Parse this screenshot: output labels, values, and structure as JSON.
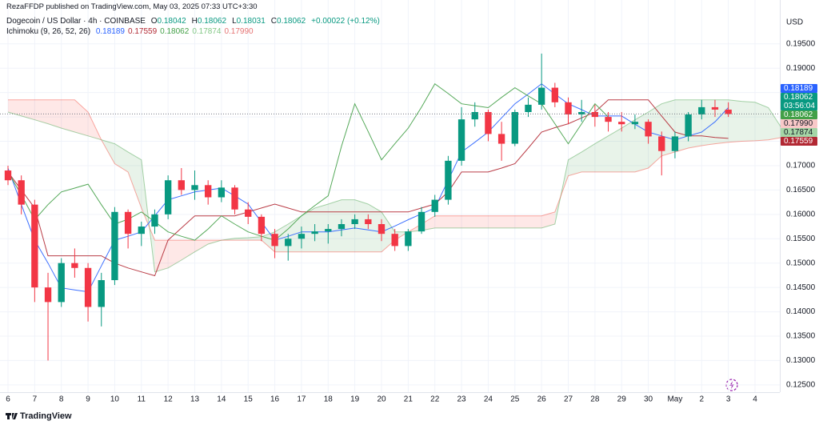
{
  "header": {
    "publisher": "RezaFFDP published on TradingView.com, May 03, 2025 07:33 UTC+3:30"
  },
  "chart_data": {
    "type": "candlestick",
    "symbol": "Dogecoin / US Dollar · 4h · COINBASE",
    "ohlc_readout": [
      {
        "key": "O",
        "value": "0.18042"
      },
      {
        "key": "H",
        "value": "0.18062"
      },
      {
        "key": "L",
        "value": "0.18031"
      },
      {
        "key": "C",
        "value": "0.18062"
      }
    ],
    "change": "+0.00022 (+0.12%)",
    "indicator": {
      "name": "Ichimoku (9, 26, 52, 26)",
      "readout": [
        {
          "value": "0.18189",
          "color": "#2962ff"
        },
        {
          "value": "0.17559",
          "color": "#b22833"
        },
        {
          "value": "0.18062",
          "color": "#43a047"
        },
        {
          "value": "0.17874",
          "color": "#81c784"
        },
        {
          "value": "0.17990",
          "color": "#e57373"
        }
      ]
    },
    "currency": "USD",
    "categories": [
      "6",
      null,
      "7",
      null,
      "8",
      null,
      "9",
      null,
      "10",
      null,
      "11",
      null,
      "12",
      null,
      "13",
      null,
      "14",
      null,
      "15",
      null,
      "16",
      null,
      "17",
      null,
      "18",
      null,
      "19",
      null,
      "20",
      null,
      "21",
      null,
      "22",
      null,
      "23",
      null,
      "24",
      null,
      "25",
      null,
      "26",
      null,
      "27",
      null,
      "28",
      null,
      "29",
      null,
      "30",
      null,
      "May",
      null,
      "2",
      null,
      "3",
      null,
      "4",
      null,
      null
    ],
    "open": [
      0.169,
      0.167,
      0.162,
      0.145,
      0.142,
      0.15,
      0.149,
      0.141,
      0.1465,
      0.1605,
      0.156,
      0.1575,
      0.16,
      0.167,
      0.165,
      0.166,
      0.1635,
      0.1655,
      0.161,
      0.1595,
      0.156,
      0.1535,
      0.155,
      0.156,
      0.1565,
      0.157,
      0.158,
      0.159,
      0.158,
      0.156,
      0.1535,
      0.1565,
      0.1605,
      0.163,
      0.171,
      0.1795,
      0.181,
      0.1765,
      0.1745,
      0.181,
      0.1825,
      0.186,
      0.183,
      0.1805,
      0.181,
      0.18,
      0.179,
      0.1785,
      0.179,
      0.176,
      0.173,
      0.176,
      0.1805,
      0.182,
      0.1815,
      null,
      null,
      null,
      null
    ],
    "high": [
      0.17,
      0.168,
      0.163,
      0.148,
      0.151,
      0.153,
      0.15,
      0.148,
      0.1615,
      0.161,
      0.1585,
      0.161,
      0.168,
      0.1695,
      0.169,
      0.167,
      0.167,
      0.166,
      0.1625,
      0.16,
      0.157,
      0.156,
      0.1575,
      0.158,
      0.158,
      0.159,
      0.16,
      0.16,
      0.159,
      0.157,
      0.157,
      0.1615,
      0.164,
      0.172,
      0.182,
      0.183,
      0.1815,
      0.179,
      0.1815,
      0.184,
      0.193,
      0.187,
      0.184,
      0.1835,
      0.1825,
      0.181,
      0.181,
      0.1805,
      0.1795,
      0.177,
      0.177,
      0.181,
      0.1835,
      0.1835,
      0.183,
      null,
      null,
      null,
      null
    ],
    "low": [
      0.166,
      0.16,
      0.142,
      0.13,
      0.141,
      0.147,
      0.138,
      0.137,
      0.1455,
      0.153,
      0.1535,
      0.156,
      0.159,
      0.164,
      0.163,
      0.162,
      0.1625,
      0.16,
      0.158,
      0.1545,
      0.151,
      0.1505,
      0.153,
      0.1545,
      0.154,
      0.1555,
      0.157,
      0.157,
      0.1545,
      0.1525,
      0.1525,
      0.156,
      0.1595,
      0.162,
      0.17,
      0.178,
      0.175,
      0.171,
      0.174,
      0.18,
      0.1815,
      0.182,
      0.1785,
      0.179,
      0.178,
      0.177,
      0.177,
      0.1775,
      0.1745,
      0.168,
      0.1715,
      0.175,
      0.1795,
      0.18,
      0.18,
      null,
      null,
      null,
      null
    ],
    "close": [
      0.167,
      0.162,
      0.145,
      0.142,
      0.15,
      0.149,
      0.141,
      0.1465,
      0.1605,
      0.156,
      0.1575,
      0.16,
      0.167,
      0.165,
      0.166,
      0.1635,
      0.1655,
      0.161,
      0.1595,
      0.156,
      0.1535,
      0.155,
      0.156,
      0.1565,
      0.157,
      0.158,
      0.159,
      0.158,
      0.156,
      0.1535,
      0.1565,
      0.1605,
      0.163,
      0.171,
      0.1795,
      0.181,
      0.1765,
      0.1745,
      0.181,
      0.1825,
      0.186,
      0.183,
      0.1805,
      0.181,
      0.18,
      0.179,
      0.1785,
      0.179,
      0.176,
      0.173,
      0.176,
      0.1805,
      0.182,
      0.1815,
      0.1806,
      null,
      null,
      null,
      null
    ],
    "up_color": "#089981",
    "down_color": "#f23645",
    "lines": [
      {
        "color": "#2962ff",
        "values": [
          0.1695,
          0.162,
          0.1547,
          0.15,
          0.1449,
          0.1445,
          0.1441,
          0.1494,
          0.1547,
          0.1555,
          0.1564,
          0.1597,
          0.163,
          0.1638,
          0.1646,
          0.165,
          0.1654,
          0.1638,
          0.1621,
          0.1584,
          0.1547,
          0.1555,
          0.1564,
          0.1564,
          0.1564,
          0.1568,
          0.1572,
          0.1568,
          0.1564,
          0.1576,
          0.1589,
          0.1601,
          0.1613,
          0.167,
          0.1728,
          0.1748,
          0.1769,
          0.1798,
          0.1827,
          0.1847,
          0.1868,
          0.1847,
          0.1827,
          0.1815,
          0.1802,
          0.1802,
          0.1802,
          0.1785,
          0.1769,
          0.1761,
          0.1753,
          0.1761,
          0.1769,
          0.179,
          0.1819,
          null,
          null,
          null,
          null
        ]
      },
      {
        "color": "#b22833",
        "values": [
          0.1687,
          0.165,
          0.1613,
          0.1515,
          0.1515,
          0.1515,
          0.1515,
          0.1515,
          0.15,
          0.149,
          0.1482,
          0.1474,
          0.1547,
          0.1572,
          0.1597,
          0.1597,
          0.1597,
          0.1597,
          0.1605,
          0.1613,
          0.1621,
          0.1613,
          0.1605,
          0.1605,
          0.1605,
          0.1605,
          0.1605,
          0.1605,
          0.1605,
          0.1605,
          0.1605,
          0.1613,
          0.1621,
          0.1646,
          0.1687,
          0.1687,
          0.1687,
          0.1695,
          0.1704,
          0.1736,
          0.1769,
          0.1778,
          0.1786,
          0.1798,
          0.181,
          0.1835,
          0.1835,
          0.1835,
          0.1835,
          0.1802,
          0.1769,
          0.1761,
          0.1761,
          0.1758,
          0.1756,
          null,
          null,
          null,
          null
        ]
      },
      {
        "color": "#43a047",
        "values": [
          0.1687,
          0.164,
          0.1589,
          0.162,
          0.1646,
          0.1654,
          0.1662,
          0.162,
          0.158,
          0.159,
          0.1605,
          0.1585,
          0.1564,
          0.1555,
          0.1547,
          0.157,
          0.1597,
          0.158,
          0.1564,
          0.1555,
          0.1547,
          0.157,
          0.1597,
          0.1618,
          0.1638,
          0.174,
          0.1827,
          0.177,
          0.1712,
          0.1745,
          0.1777,
          0.182,
          0.1868,
          0.1848,
          0.1827,
          0.1823,
          0.1819,
          0.184,
          0.186,
          0.1843,
          0.1827,
          0.1786,
          0.1745,
          0.1786,
          0.1827,
          0.18,
          null,
          null,
          null,
          null,
          null,
          null,
          null,
          null,
          null,
          null,
          null,
          null,
          null
        ]
      }
    ],
    "cloud": {
      "up_color": "#43a047",
      "down_color": "#f44336",
      "span_a": [
        0.181,
        0.1802,
        0.1794,
        0.1786,
        0.1777,
        0.1769,
        0.1761,
        0.1753,
        0.1745,
        0.1728,
        0.1712,
        0.1482,
        0.149,
        0.1506,
        0.1523,
        0.1539,
        0.1547,
        0.1551,
        0.1552,
        0.1554,
        0.1564,
        0.158,
        0.1597,
        0.1613,
        0.1621,
        0.163,
        0.163,
        0.1621,
        0.1605,
        0.1564,
        0.1564,
        0.1567,
        0.1572,
        0.1572,
        0.1572,
        0.1572,
        0.1572,
        0.1572,
        0.1572,
        0.1572,
        0.1572,
        0.158,
        0.1712,
        0.1728,
        0.1745,
        0.1761,
        0.1777,
        0.1794,
        0.181,
        0.1827,
        0.1835,
        0.1835,
        0.1835,
        0.1835,
        0.1835,
        0.1832,
        0.183,
        0.1819,
        0.1777
      ],
      "span_b": [
        0.1835,
        0.1835,
        0.1835,
        0.1835,
        0.1835,
        0.1835,
        0.181,
        0.1753,
        0.1704,
        0.1687,
        0.1613,
        0.1547,
        0.1547,
        0.1547,
        0.1547,
        0.1547,
        0.1547,
        0.1547,
        0.1547,
        0.1547,
        0.1523,
        0.1523,
        0.1523,
        0.1523,
        0.1523,
        0.1523,
        0.1523,
        0.1523,
        0.1523,
        0.1547,
        0.1564,
        0.158,
        0.1597,
        0.1597,
        0.1597,
        0.1597,
        0.1597,
        0.1597,
        0.1597,
        0.1597,
        0.1597,
        0.1605,
        0.1679,
        0.1687,
        0.1687,
        0.1687,
        0.1687,
        0.1687,
        0.1695,
        0.172,
        0.1728,
        0.1736,
        0.1741,
        0.1745,
        0.1748,
        0.175,
        0.1751,
        0.1753,
        0.1758
      ]
    },
    "ylim": [
      0.1235,
      0.204
    ],
    "yticks": [
      {
        "value": 0.125,
        "label": "0.12500"
      },
      {
        "value": 0.13,
        "label": "0.13000"
      },
      {
        "value": 0.135,
        "label": "0.13500"
      },
      {
        "value": 0.14,
        "label": "0.14000"
      },
      {
        "value": 0.145,
        "label": "0.14500"
      },
      {
        "value": 0.15,
        "label": "0.15000"
      },
      {
        "value": 0.155,
        "label": "0.15500"
      },
      {
        "value": 0.16,
        "label": "0.16000"
      },
      {
        "value": 0.165,
        "label": "0.16500"
      },
      {
        "value": 0.17,
        "label": "0.17000"
      },
      {
        "value": 0.175,
        "label": "0.17500"
      },
      {
        "value": 0.18,
        "label": "0.18000"
      },
      {
        "value": 0.185,
        "label": "0.18500"
      },
      {
        "value": 0.19,
        "label": "0.19000"
      },
      {
        "value": 0.195,
        "label": "0.19500"
      }
    ],
    "price_tags": [
      {
        "label": "0.18189",
        "color": "#2962ff",
        "text_color": "#ffffff"
      },
      {
        "label": "0.18062",
        "color": "#089981",
        "text_color": "#ffffff",
        "countdown": "03:56:04"
      },
      {
        "label": "0.18062",
        "color": "#43a047",
        "text_color": "#ffffff"
      },
      {
        "label": "0.17990",
        "color": "#f8c8c8",
        "text_color": "#131722"
      },
      {
        "label": "0.17874",
        "color": "#a5d6a7",
        "text_color": "#131722"
      },
      {
        "label": "0.17559",
        "color": "#b22833",
        "text_color": "#ffffff"
      }
    ]
  },
  "footer": {
    "logo": "TradingView"
  }
}
